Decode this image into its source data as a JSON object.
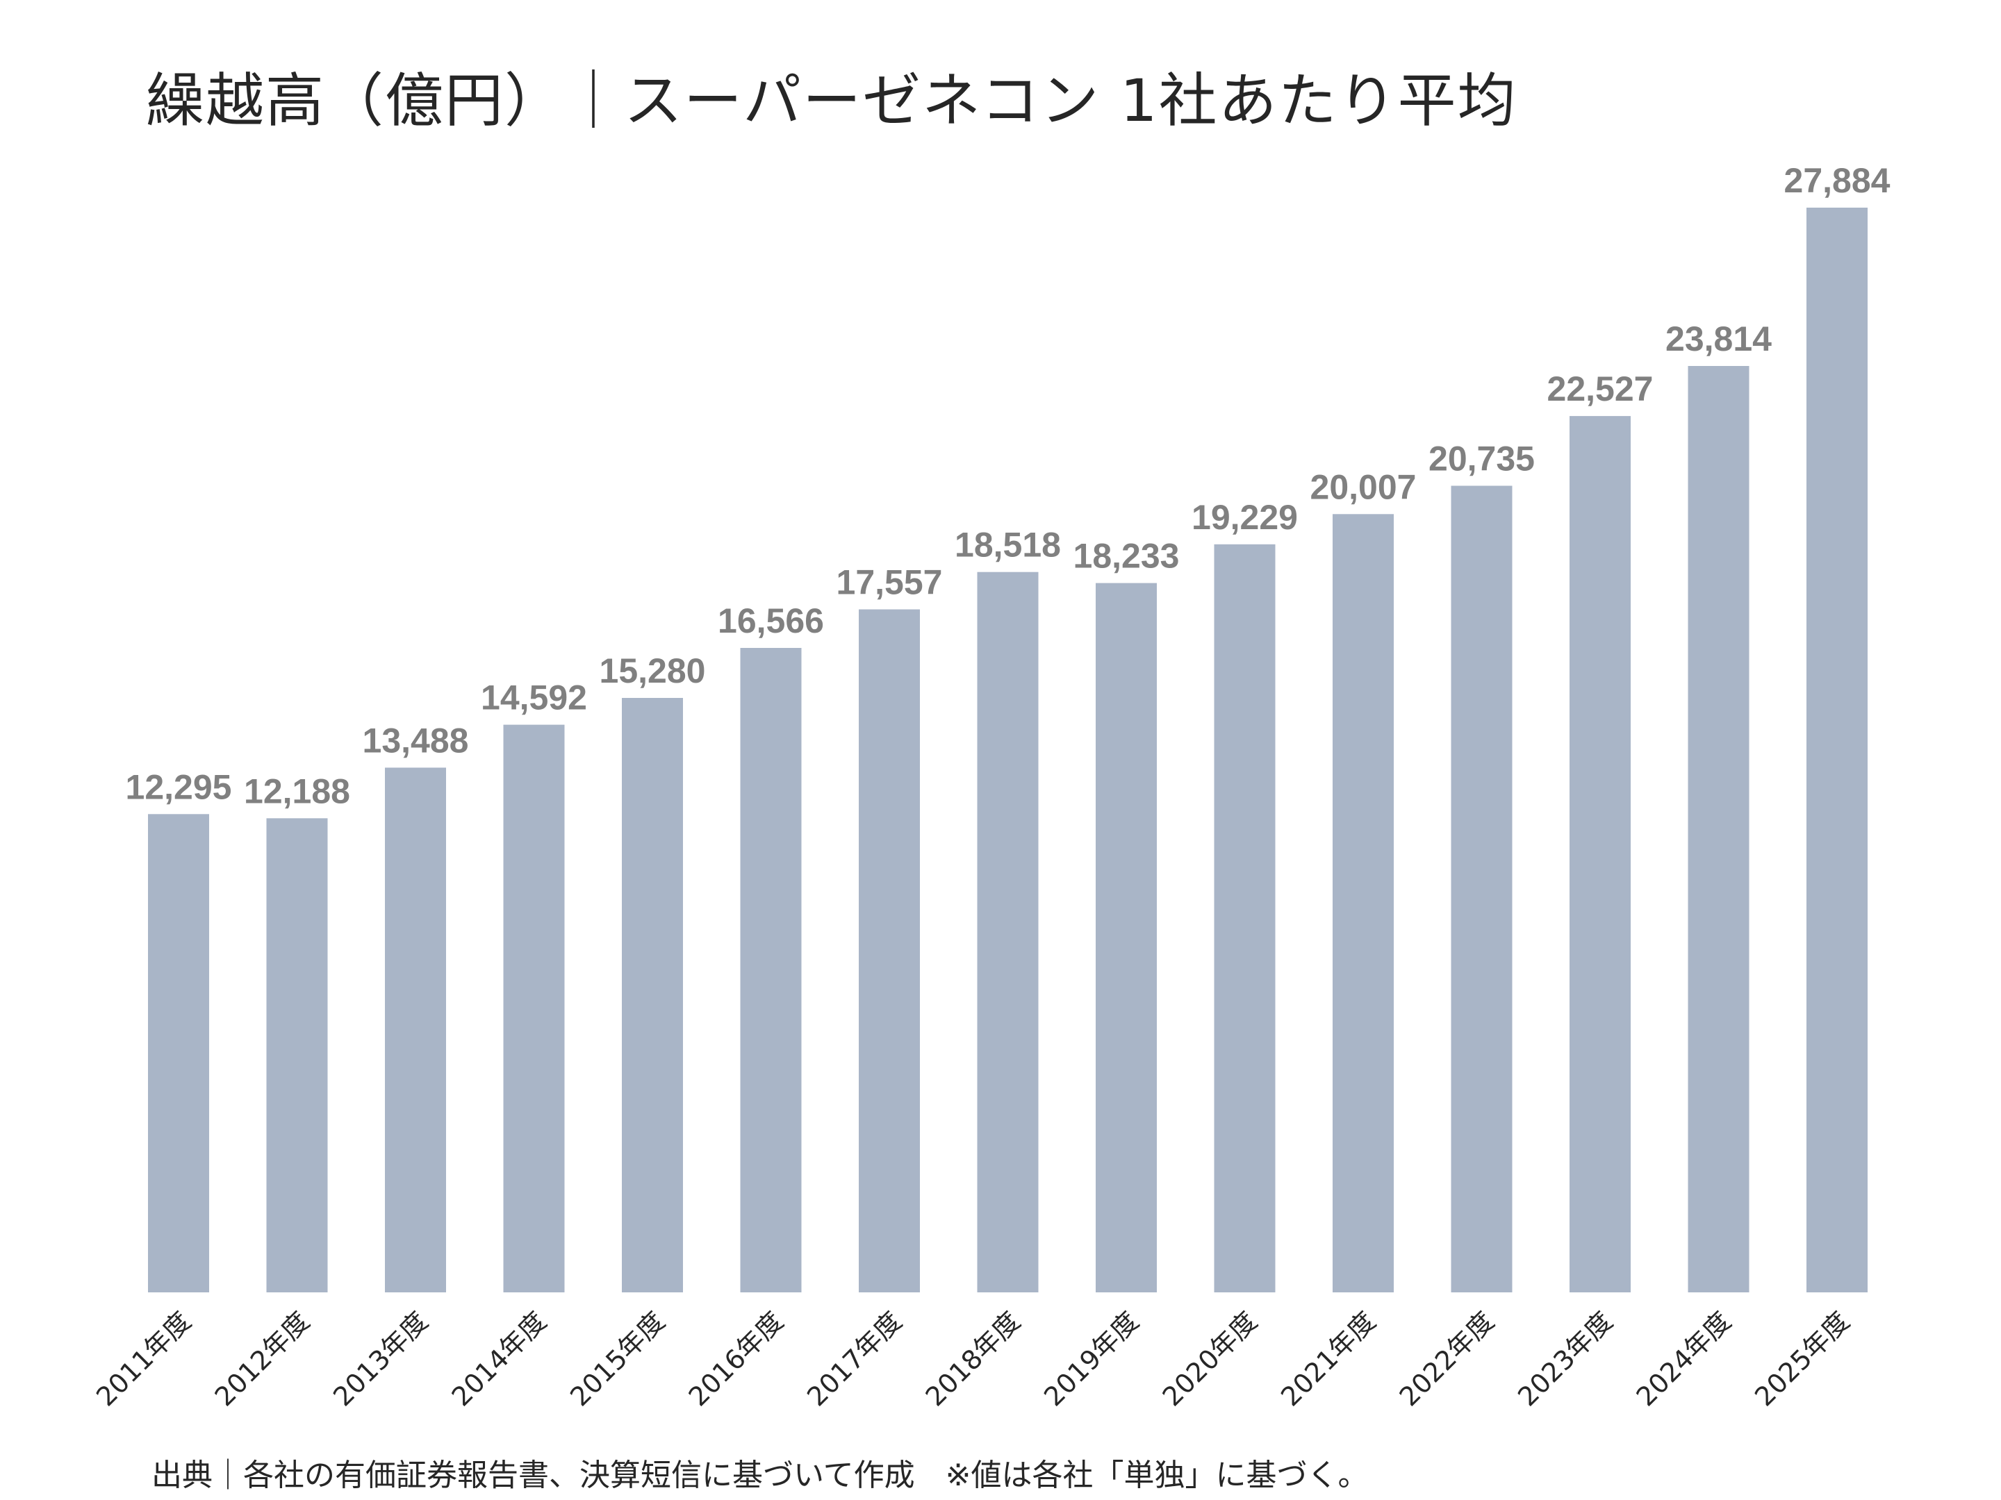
{
  "title": "繰越高（億円）｜スーパーゼネコン 1社あたり平均",
  "source": "出典｜各社の有価証券報告書、決算短信に基づいて作成　※値は各社「単独」に基づく。",
  "colors": {
    "bar": "#a9b5c7",
    "value_label": "#808080",
    "text": "#262626"
  },
  "chart_data": {
    "type": "bar",
    "title": "繰越高（億円）｜スーパーゼネコン 1社あたり平均",
    "xlabel": "",
    "ylabel": "",
    "categories": [
      "2011年度",
      "2012年度",
      "2013年度",
      "2014年度",
      "2015年度",
      "2016年度",
      "2017年度",
      "2018年度",
      "2019年度",
      "2020年度",
      "2021年度",
      "2022年度",
      "2023年度",
      "2024年度",
      "2025年度"
    ],
    "values": [
      12295,
      12188,
      13488,
      14592,
      15280,
      16566,
      17557,
      18518,
      18233,
      19229,
      20007,
      20735,
      22527,
      23814,
      27884
    ],
    "value_labels": [
      "12,295",
      "12,188",
      "13,488",
      "14,592",
      "15,280",
      "16,566",
      "17,557",
      "18,518",
      "18,233",
      "19,229",
      "20,007",
      "20,735",
      "22,527",
      "23,814",
      "27,884"
    ],
    "ylim": [
      0,
      27884
    ],
    "grid": false,
    "legend": "none"
  }
}
